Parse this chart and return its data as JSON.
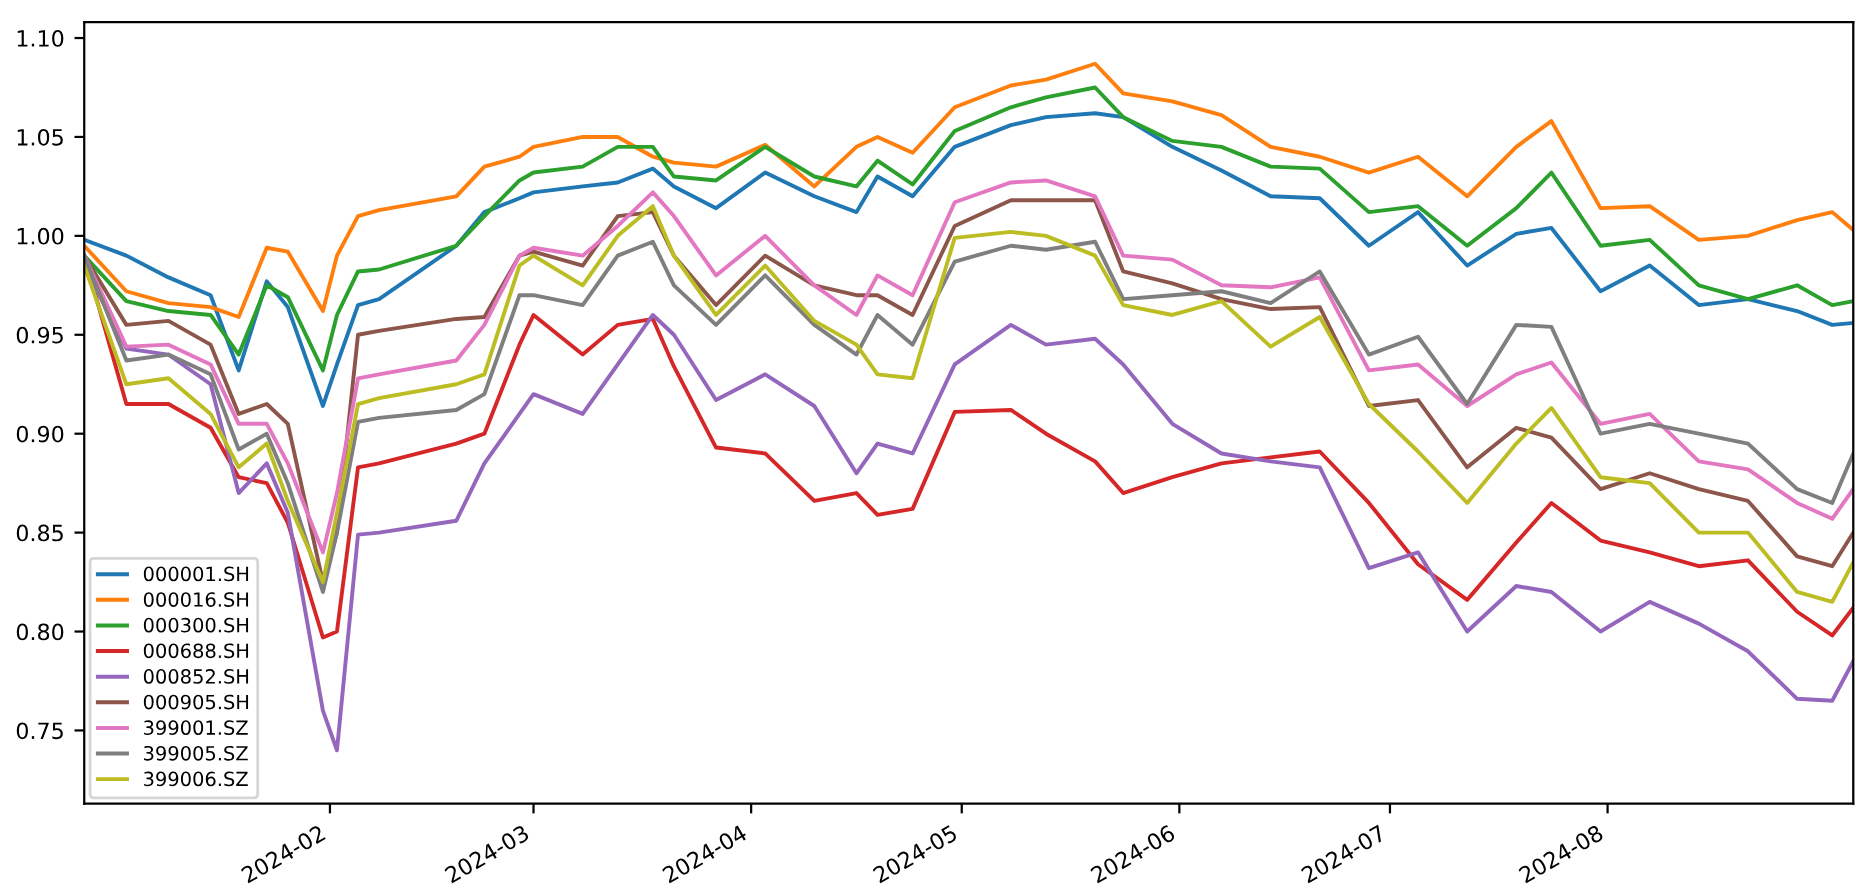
{
  "chart_data": {
    "type": "line",
    "x": [
      "2023-12-28",
      "2024-01-03",
      "2024-01-09",
      "2024-01-15",
      "2024-01-19",
      "2024-01-23",
      "2024-01-26",
      "2024-01-31",
      "2024-02-02",
      "2024-02-05",
      "2024-02-08",
      "2024-02-19",
      "2024-02-23",
      "2024-02-28",
      "2024-03-01",
      "2024-03-08",
      "2024-03-13",
      "2024-03-18",
      "2024-03-21",
      "2024-03-27",
      "2024-04-03",
      "2024-04-10",
      "2024-04-16",
      "2024-04-19",
      "2024-04-24",
      "2024-04-30",
      "2024-05-08",
      "2024-05-13",
      "2024-05-20",
      "2024-05-24",
      "2024-05-31",
      "2024-06-07",
      "2024-06-14",
      "2024-06-21",
      "2024-06-28",
      "2024-07-05",
      "2024-07-12",
      "2024-07-19",
      "2024-07-24",
      "2024-07-31",
      "2024-08-07",
      "2024-08-14",
      "2024-08-21",
      "2024-08-28",
      "2024-09-02",
      "2024-09-05"
    ],
    "series": [
      {
        "name": "000001.SH",
        "color": "#1f77b4",
        "values": [
          0.998,
          0.99,
          0.979,
          0.97,
          0.932,
          0.977,
          0.964,
          0.914,
          0.935,
          0.965,
          0.968,
          0.995,
          1.012,
          1.019,
          1.022,
          1.025,
          1.027,
          1.034,
          1.025,
          1.014,
          1.032,
          1.02,
          1.012,
          1.03,
          1.02,
          1.045,
          1.056,
          1.06,
          1.062,
          1.06,
          1.045,
          1.033,
          1.02,
          1.019,
          0.995,
          1.012,
          0.985,
          1.001,
          1.004,
          0.972,
          0.985,
          0.965,
          0.968,
          0.962,
          0.955,
          0.956
        ]
      },
      {
        "name": "000016.SH",
        "color": "#ff7f0e",
        "values": [
          0.995,
          0.972,
          0.966,
          0.964,
          0.959,
          0.994,
          0.992,
          0.962,
          0.99,
          1.01,
          1.013,
          1.02,
          1.035,
          1.04,
          1.045,
          1.05,
          1.05,
          1.04,
          1.037,
          1.035,
          1.046,
          1.025,
          1.045,
          1.05,
          1.042,
          1.065,
          1.076,
          1.079,
          1.087,
          1.072,
          1.068,
          1.061,
          1.045,
          1.04,
          1.032,
          1.04,
          1.02,
          1.045,
          1.058,
          1.014,
          1.015,
          0.998,
          1.0,
          1.008,
          1.012,
          1.003
        ]
      },
      {
        "name": "000300.SH",
        "color": "#2ca02c",
        "values": [
          0.99,
          0.967,
          0.962,
          0.96,
          0.94,
          0.975,
          0.969,
          0.932,
          0.96,
          0.982,
          0.983,
          0.995,
          1.01,
          1.028,
          1.032,
          1.035,
          1.045,
          1.045,
          1.03,
          1.028,
          1.045,
          1.03,
          1.025,
          1.038,
          1.026,
          1.053,
          1.065,
          1.07,
          1.075,
          1.06,
          1.048,
          1.045,
          1.035,
          1.034,
          1.012,
          1.015,
          0.995,
          1.014,
          1.032,
          0.995,
          0.998,
          0.975,
          0.968,
          0.975,
          0.965,
          0.967
        ]
      },
      {
        "name": "000688.SH",
        "color": "#d62728",
        "values": [
          0.99,
          0.915,
          0.915,
          0.903,
          0.878,
          0.875,
          0.855,
          0.797,
          0.8,
          0.883,
          0.885,
          0.895,
          0.9,
          0.945,
          0.96,
          0.94,
          0.955,
          0.958,
          0.934,
          0.893,
          0.89,
          0.866,
          0.87,
          0.859,
          0.862,
          0.911,
          0.912,
          0.9,
          0.886,
          0.87,
          0.878,
          0.885,
          0.888,
          0.891,
          0.865,
          0.834,
          0.816,
          0.845,
          0.865,
          0.846,
          0.84,
          0.833,
          0.836,
          0.81,
          0.798,
          0.812
        ]
      },
      {
        "name": "000852.SH",
        "color": "#9467bd",
        "values": [
          0.985,
          0.943,
          0.94,
          0.925,
          0.87,
          0.885,
          0.86,
          0.76,
          0.74,
          0.849,
          0.85,
          0.856,
          0.885,
          0.91,
          0.92,
          0.91,
          0.935,
          0.96,
          0.95,
          0.917,
          0.93,
          0.914,
          0.88,
          0.895,
          0.89,
          0.935,
          0.955,
          0.945,
          0.948,
          0.935,
          0.905,
          0.89,
          0.886,
          0.883,
          0.832,
          0.84,
          0.8,
          0.823,
          0.82,
          0.8,
          0.815,
          0.804,
          0.79,
          0.766,
          0.765,
          0.785
        ]
      },
      {
        "name": "000905.SH",
        "color": "#8c564b",
        "values": [
          0.99,
          0.955,
          0.957,
          0.945,
          0.91,
          0.915,
          0.905,
          0.825,
          0.85,
          0.95,
          0.952,
          0.958,
          0.959,
          0.99,
          0.992,
          0.985,
          1.01,
          1.012,
          0.99,
          0.965,
          0.99,
          0.975,
          0.97,
          0.97,
          0.96,
          1.005,
          1.018,
          1.018,
          1.018,
          0.982,
          0.976,
          0.968,
          0.963,
          0.964,
          0.914,
          0.917,
          0.883,
          0.903,
          0.898,
          0.872,
          0.88,
          0.872,
          0.866,
          0.838,
          0.833,
          0.85
        ]
      },
      {
        "name": "399001.SZ",
        "color": "#e377c2",
        "values": [
          0.99,
          0.944,
          0.945,
          0.935,
          0.905,
          0.905,
          0.885,
          0.84,
          0.87,
          0.928,
          0.93,
          0.937,
          0.955,
          0.99,
          0.994,
          0.99,
          1.005,
          1.022,
          1.01,
          0.98,
          1.0,
          0.975,
          0.96,
          0.98,
          0.97,
          1.017,
          1.027,
          1.028,
          1.02,
          0.99,
          0.988,
          0.975,
          0.974,
          0.979,
          0.932,
          0.935,
          0.914,
          0.93,
          0.936,
          0.905,
          0.91,
          0.886,
          0.882,
          0.865,
          0.857,
          0.872
        ]
      },
      {
        "name": "399005.SZ",
        "color": "#7f7f7f",
        "values": [
          0.99,
          0.937,
          0.94,
          0.93,
          0.892,
          0.9,
          0.875,
          0.82,
          0.85,
          0.906,
          0.908,
          0.912,
          0.92,
          0.97,
          0.97,
          0.965,
          0.99,
          0.997,
          0.975,
          0.955,
          0.98,
          0.955,
          0.94,
          0.96,
          0.945,
          0.987,
          0.995,
          0.993,
          0.997,
          0.968,
          0.97,
          0.972,
          0.966,
          0.982,
          0.94,
          0.949,
          0.915,
          0.955,
          0.954,
          0.9,
          0.905,
          0.9,
          0.895,
          0.872,
          0.865,
          0.89
        ]
      },
      {
        "name": "399006.SZ",
        "color": "#bcbd22",
        "values": [
          0.985,
          0.925,
          0.928,
          0.91,
          0.883,
          0.895,
          0.866,
          0.825,
          0.86,
          0.915,
          0.918,
          0.925,
          0.93,
          0.985,
          0.99,
          0.975,
          1.0,
          1.015,
          0.99,
          0.96,
          0.985,
          0.957,
          0.945,
          0.93,
          0.928,
          0.999,
          1.002,
          1.0,
          0.99,
          0.965,
          0.96,
          0.967,
          0.944,
          0.959,
          0.915,
          0.891,
          0.865,
          0.895,
          0.913,
          0.878,
          0.875,
          0.85,
          0.85,
          0.82,
          0.815,
          0.835
        ]
      }
    ],
    "xlim": [
      "2023-12-28",
      "2024-09-05"
    ],
    "xticks": [
      {
        "value": "2024-02-01",
        "label": "2024-02"
      },
      {
        "value": "2024-03-01",
        "label": "2024-03"
      },
      {
        "value": "2024-04-01",
        "label": "2024-04"
      },
      {
        "value": "2024-05-01",
        "label": "2024-05"
      },
      {
        "value": "2024-06-01",
        "label": "2024-06"
      },
      {
        "value": "2024-07-01",
        "label": "2024-07"
      },
      {
        "value": "2024-08-01",
        "label": "2024-08"
      }
    ],
    "ylim": [
      0.713,
      1.108
    ],
    "yticks": [
      {
        "value": 0.75,
        "label": "0.75"
      },
      {
        "value": 0.8,
        "label": "0.80"
      },
      {
        "value": 0.85,
        "label": "0.85"
      },
      {
        "value": 0.9,
        "label": "0.90"
      },
      {
        "value": 0.95,
        "label": "0.95"
      },
      {
        "value": 1.0,
        "label": "1.00"
      },
      {
        "value": 1.05,
        "label": "1.05"
      },
      {
        "value": 1.1,
        "label": "1.10"
      }
    ],
    "legend": "lower left",
    "grid": false,
    "marker": "none",
    "line_style": "solid"
  }
}
